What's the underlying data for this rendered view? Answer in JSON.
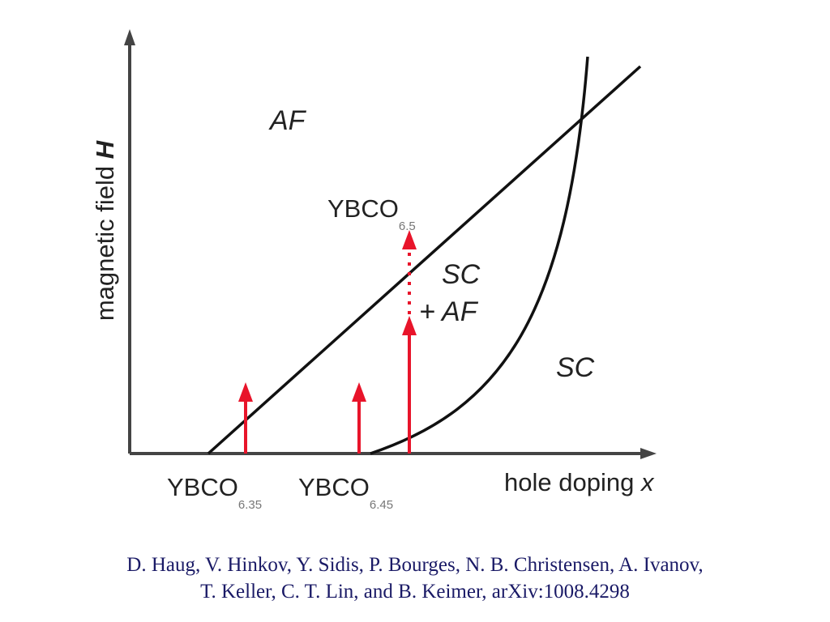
{
  "figure": {
    "y_axis_label": "magnetic field ",
    "y_axis_symbol": "H",
    "x_axis_label": "hole doping ",
    "x_axis_symbol": "x",
    "regions": {
      "af": "AF",
      "sc_af_line1": "SC",
      "sc_af_line2": "+ AF",
      "sc": "SC"
    },
    "samples": [
      {
        "base": "YBCO",
        "sub": "6.35"
      },
      {
        "base": "YBCO",
        "sub": "6.45"
      },
      {
        "base": "YBCO",
        "sub": "6.5"
      }
    ],
    "colors": {
      "line": "#111111",
      "arrow": "#e8142a",
      "caption": "#1a1a66"
    }
  },
  "caption": {
    "line1": "D. Haug, V. Hinkov, Y. Sidis, P. Bourges, N. B. Christensen, A. Ivanov,",
    "line2": "T. Keller, C. T. Lin, and B. Keimer, arXiv:1008.4298"
  }
}
